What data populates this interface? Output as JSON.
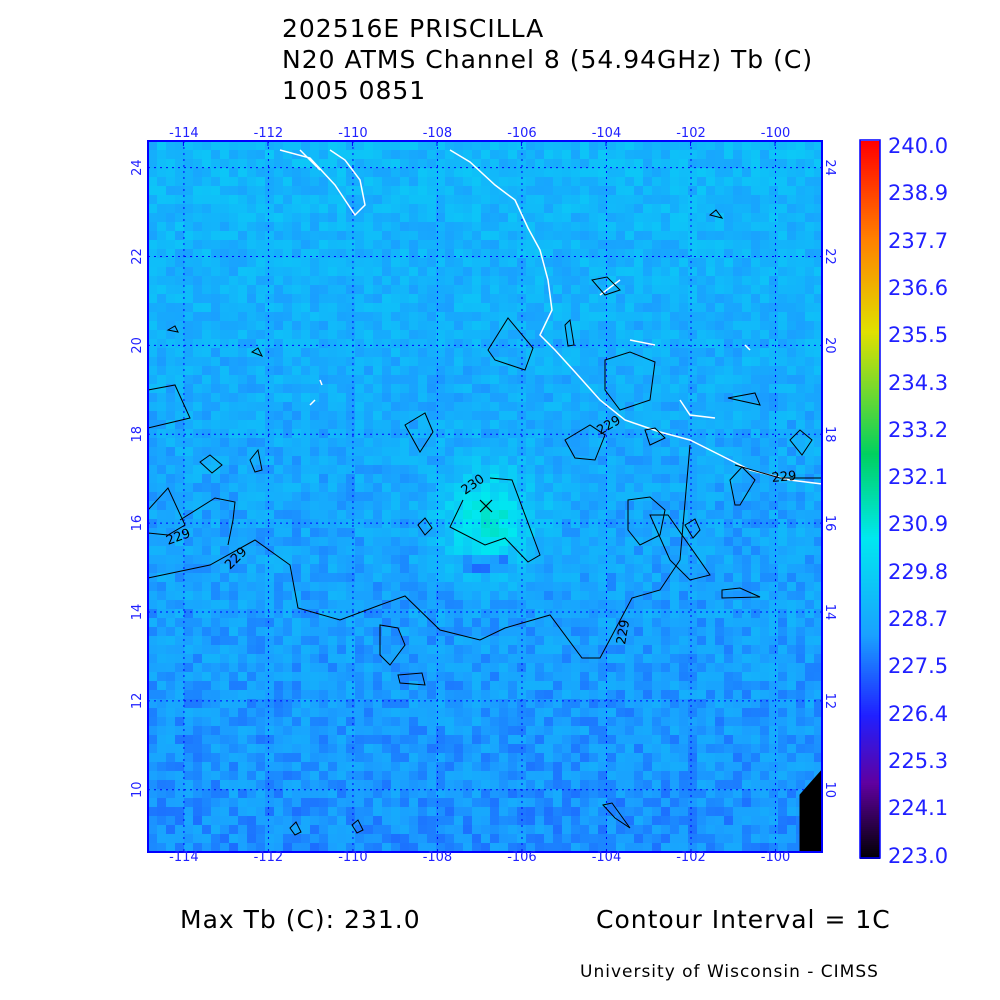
{
  "header": {
    "line1": "202516E PRISCILLA",
    "line2": "N20 ATMS Channel 8 (54.94GHz) Tb (C)",
    "line3": "1005 0851"
  },
  "chart_data": {
    "type": "heatmap",
    "title": "202516E PRISCILLA",
    "lon_range": [
      -114.85,
      -98.9
    ],
    "lat_range": [
      8.6,
      24.6
    ],
    "lon_ticks": [
      "-114",
      "-112",
      "-110",
      "-108",
      "-106",
      "-104",
      "-102",
      "-100"
    ],
    "lat_ticks": [
      "24",
      "22",
      "20",
      "18",
      "16",
      "14",
      "12",
      "10"
    ],
    "grid": true,
    "colorbar": {
      "range": [
        223.0,
        240.0
      ],
      "labels": [
        "240.0",
        "238.9",
        "237.7",
        "236.6",
        "235.5",
        "234.3",
        "233.2",
        "232.1",
        "230.9",
        "229.8",
        "228.7",
        "227.5",
        "226.4",
        "225.3",
        "224.1",
        "223.0"
      ],
      "colors": [
        "#000000",
        "#6000a0",
        "#2020ff",
        "#1aa0ff",
        "#00e8f0",
        "#00d060",
        "#e0e000",
        "#ff8000",
        "#ff0000"
      ]
    },
    "center_marker": {
      "lon": -106.9,
      "lat": 16.4,
      "symbol": "X"
    },
    "contour_labels": [
      "229",
      "229",
      "229",
      "229",
      "229",
      "230"
    ],
    "max_tb": 231.0,
    "contour_interval": "1C"
  },
  "footer": {
    "max_tb": "Max Tb (C): 231.0",
    "contour": "Contour Interval = 1C",
    "credit": "University of Wisconsin - CIMSS"
  },
  "colors": {
    "axis": "#0000ff",
    "coast": "#ffffff",
    "contour": "#000000"
  }
}
